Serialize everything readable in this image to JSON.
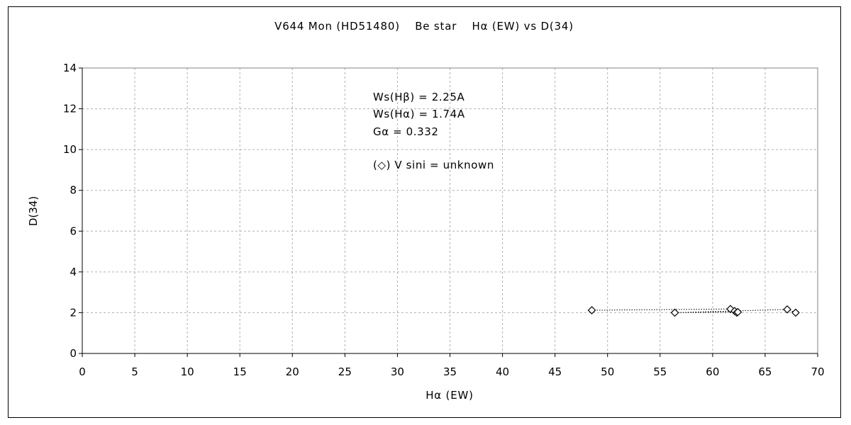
{
  "chart_data": {
    "type": "scatter",
    "title": "V644 Mon (HD51480)　 Be star　 Hα (EW) vs D(34)",
    "xlabel": "Hα (EW)",
    "ylabel": "D(34)",
    "xlim": [
      0,
      70
    ],
    "ylim": [
      0,
      14
    ],
    "xticks": [
      "0",
      "5",
      "10",
      "15",
      "20",
      "25",
      "30",
      "35",
      "40",
      "45",
      "50",
      "55",
      "60",
      "65",
      "70"
    ],
    "yticks": [
      "0",
      "2",
      "4",
      "6",
      "8",
      "10",
      "12",
      "14"
    ],
    "grid": true,
    "series": [
      {
        "marker": "diamond",
        "line": "dotted",
        "points": [
          [
            48.5,
            2.12
          ],
          [
            61.7,
            2.18
          ],
          [
            62.1,
            2.08
          ],
          [
            62.3,
            2.0
          ],
          [
            62.4,
            2.03
          ],
          [
            56.4,
            2.0
          ],
          [
            67.1,
            2.16
          ],
          [
            67.9,
            2.0
          ]
        ]
      }
    ],
    "annotations": [
      "Ws(Hβ) = 2.25A",
      "Ws(Hα) = 1.74A",
      "Gα = 0.332",
      "(◇) V sini = unknown"
    ]
  }
}
